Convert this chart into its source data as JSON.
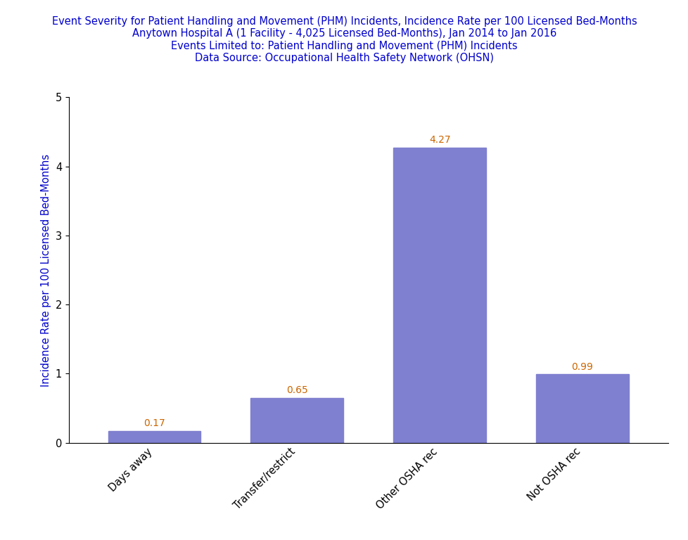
{
  "title_line1": "Event Severity for Patient Handling and Movement (PHM) Incidents, Incidence Rate per 100 Licensed Bed-Months",
  "title_line2": "Anytown Hospital A (1 Facility - 4,025 Licensed Bed-Months), Jan 2014 to Jan 2016",
  "title_line3": "Events Limited to: Patient Handling and Movement (PHM) Incidents",
  "title_line4": "Data Source: Occupational Health Safety Network (OHSN)",
  "categories": [
    "Days away",
    "Transfer/restrict",
    "Other OSHA rec",
    "Not OSHA rec"
  ],
  "values": [
    0.17,
    0.65,
    4.27,
    0.99
  ],
  "bar_color": "#8080d0",
  "value_color": "#cc6600",
  "title_color": "#0000cc",
  "ylabel": "Incidence Rate per 100 Licensed Bed-Months",
  "ylabel_color": "#0000cc",
  "ylim": [
    0,
    5
  ],
  "yticks": [
    0,
    1,
    2,
    3,
    4,
    5
  ],
  "background_color": "#ffffff",
  "bar_width": 0.65,
  "title_fontsize": 10.5,
  "label_fontsize": 10.5,
  "tick_fontsize": 10.5,
  "value_fontsize": 10
}
